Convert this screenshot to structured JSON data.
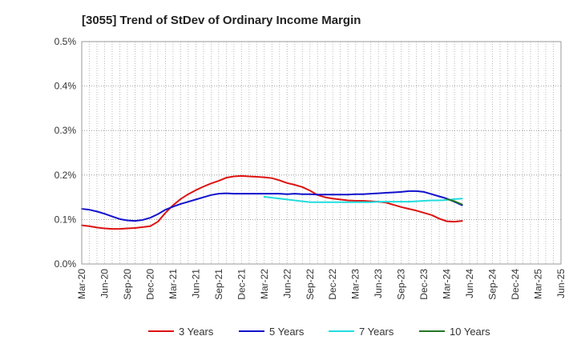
{
  "chart_data": {
    "type": "line",
    "title": "[3055]  Trend of StDev of Ordinary Income Margin",
    "xlabel": "",
    "ylabel": "",
    "ylim": [
      0,
      0.5
    ],
    "y_ticks": [
      "0.0%",
      "0.1%",
      "0.2%",
      "0.3%",
      "0.4%",
      "0.5%"
    ],
    "x_ticks": [
      "Mar-20",
      "Jun-20",
      "Sep-20",
      "Dec-20",
      "Mar-21",
      "Jun-21",
      "Sep-21",
      "Dec-21",
      "Mar-22",
      "Jun-22",
      "Sep-22",
      "Dec-22",
      "Mar-23",
      "Jun-23",
      "Sep-23",
      "Dec-23",
      "Mar-24",
      "Jun-24",
      "Sep-24",
      "Dec-24",
      "Mar-25",
      "Jun-25"
    ],
    "grid": true,
    "legend_position": "bottom",
    "series": [
      {
        "name": "3 Years",
        "color": "#dd1111",
        "start_index": 0,
        "values": [
          0.087,
          0.085,
          0.082,
          0.08,
          0.079,
          0.079,
          0.08,
          0.081,
          0.083,
          0.085,
          0.095,
          0.115,
          0.132,
          0.146,
          0.157,
          0.166,
          0.174,
          0.181,
          0.187,
          0.194,
          0.197,
          0.198,
          0.197,
          0.196,
          0.195,
          0.193,
          0.188,
          0.182,
          0.178,
          0.173,
          0.165,
          0.155,
          0.15,
          0.147,
          0.145,
          0.143,
          0.142,
          0.142,
          0.141,
          0.14,
          0.138,
          0.133,
          0.128,
          0.124,
          0.12,
          0.115,
          0.11,
          0.102,
          0.096,
          0.095,
          0.097
        ]
      },
      {
        "name": "5 Years",
        "color": "#1111cc",
        "start_index": 0,
        "values": [
          0.124,
          0.122,
          0.118,
          0.113,
          0.107,
          0.101,
          0.098,
          0.097,
          0.099,
          0.104,
          0.112,
          0.122,
          0.129,
          0.135,
          0.14,
          0.145,
          0.15,
          0.155,
          0.158,
          0.159,
          0.158,
          0.158,
          0.158,
          0.158,
          0.158,
          0.158,
          0.158,
          0.157,
          0.158,
          0.157,
          0.157,
          0.156,
          0.156,
          0.156,
          0.156,
          0.156,
          0.157,
          0.157,
          0.158,
          0.159,
          0.16,
          0.161,
          0.162,
          0.164,
          0.164,
          0.162,
          0.157,
          0.152,
          0.147,
          0.14,
          0.132
        ]
      },
      {
        "name": "7 Years",
        "color": "#22dddd",
        "start_index": 24,
        "values": [
          0.151,
          0.149,
          0.147,
          0.145,
          0.143,
          0.141,
          0.139,
          0.139,
          0.139,
          0.139,
          0.139,
          0.139,
          0.139,
          0.139,
          0.139,
          0.14,
          0.14,
          0.14,
          0.14,
          0.14,
          0.141,
          0.142,
          0.143,
          0.143,
          0.144,
          0.146,
          0.147
        ]
      },
      {
        "name": "10 Years",
        "color": "#227722",
        "start_index": 48,
        "values": [
          0.146,
          0.141,
          0.134
        ]
      }
    ]
  }
}
